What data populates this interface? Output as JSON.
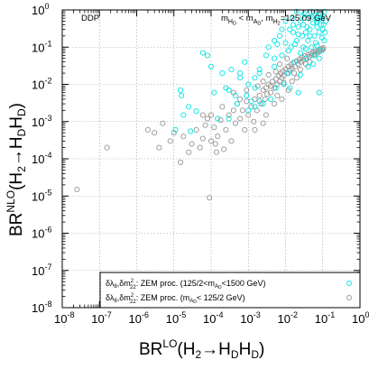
{
  "chart_data": {
    "type": "scatter",
    "scale": {
      "x": "log",
      "y": "log"
    },
    "xlim": [
      1e-08,
      1
    ],
    "ylim": [
      1e-08,
      1
    ],
    "grid": true,
    "legend_position": "bottom-right",
    "corner_left": "DDP",
    "corner_right": {
      "m1": "m",
      "h_d": "H",
      "d1": "D",
      "lt": " < m",
      "a_d": "A",
      "d2": "D",
      "comma": ",  m",
      "h2": "H",
      "two": "2",
      "value": "=125.09 GeV"
    },
    "xlabel": {
      "base": "BR",
      "sup": "LO",
      "open": "(H",
      "s2": "2",
      "arrow": "→H",
      "sd1": "D",
      "h": "H",
      "sd2": "D",
      "close": ")"
    },
    "ylabel": {
      "base": "BR",
      "sup": "NLO",
      "open": "(H",
      "s2": "2",
      "arrow": "→H",
      "sd1": "D",
      "h": "H",
      "sd2": "D",
      "close": ")"
    },
    "x_ticks": [
      {
        "base": "10",
        "exp": "-8",
        "value": 1e-08
      },
      {
        "base": "10",
        "exp": "-7",
        "value": 1e-07
      },
      {
        "base": "10",
        "exp": "-6",
        "value": 1e-06
      },
      {
        "base": "10",
        "exp": "-5",
        "value": 1e-05
      },
      {
        "base": "10",
        "exp": "-4",
        "value": 0.0001
      },
      {
        "base": "10",
        "exp": "-3",
        "value": 0.001
      },
      {
        "base": "10",
        "exp": "-2",
        "value": 0.01
      },
      {
        "base": "10",
        "exp": "-1",
        "value": 0.1
      },
      {
        "base": "10",
        "exp": "0",
        "value": 1
      }
    ],
    "y_ticks": [
      {
        "base": "10",
        "exp": "-8",
        "value": 1e-08
      },
      {
        "base": "10",
        "exp": "-7",
        "value": 1e-07
      },
      {
        "base": "10",
        "exp": "-6",
        "value": 1e-06
      },
      {
        "base": "10",
        "exp": "-5",
        "value": 1e-05
      },
      {
        "base": "10",
        "exp": "-4",
        "value": 0.0001
      },
      {
        "base": "10",
        "exp": "-3",
        "value": 0.001
      },
      {
        "base": "10",
        "exp": "-2",
        "value": 0.01
      },
      {
        "base": "10",
        "exp": "-1",
        "value": 0.1
      },
      {
        "base": "10",
        "exp": "0",
        "value": 1
      }
    ],
    "series": [
      {
        "color": "#00e5e5",
        "marker": "open-circle",
        "legend": {
          "d1": "δλ",
          "s8": "8",
          "sep": ",δm",
          "sup2": "2",
          "sub22": "22",
          "rest": ": ZEM proc. (125/2<m",
          "a_d": "A",
          "d": "D",
          "rest2": "<1500 GeV)"
        },
        "points": [
          [
            1.1e-05,
            0.0006
          ],
          [
            1.5e-05,
            0.007
          ],
          [
            1.6e-05,
            0.005
          ],
          [
            1.8e-05,
            0.0015
          ],
          [
            2.5e-05,
            0.0025
          ],
          [
            2.8e-05,
            0.00055
          ],
          [
            4e-05,
            0.0019
          ],
          [
            6e-05,
            0.07
          ],
          [
            8e-05,
            0.06
          ],
          [
            0.0001,
            0.03
          ],
          [
            0.00015,
            0.0012
          ],
          [
            0.0002,
            0.02
          ],
          [
            0.0003,
            0.0012
          ],
          [
            0.00035,
            0.025
          ],
          [
            0.00045,
            0.005
          ],
          [
            0.0005,
            0.003
          ],
          [
            0.0006,
            0.015
          ],
          [
            0.0008,
            0.04
          ],
          [
            0.0009,
            0.005
          ],
          [
            0.001,
            0.002
          ],
          [
            0.0012,
            0.0035
          ],
          [
            0.0015,
            0.0025
          ],
          [
            0.0015,
            0.008
          ],
          [
            0.002,
            0.025
          ],
          [
            0.002,
            0.02
          ],
          [
            0.0025,
            0.003
          ],
          [
            0.003,
            0.06
          ],
          [
            0.0035,
            0.1
          ],
          [
            0.004,
            0.004
          ],
          [
            0.005,
            0.05
          ],
          [
            0.005,
            0.15
          ],
          [
            0.0055,
            0.008
          ],
          [
            0.006,
            0.12
          ],
          [
            0.007,
            0.2
          ],
          [
            0.008,
            0.06
          ],
          [
            0.008,
            0.3
          ],
          [
            0.009,
            0.01
          ],
          [
            0.01,
            0.13
          ],
          [
            0.01,
            0.5
          ],
          [
            0.012,
            0.02
          ],
          [
            0.012,
            0.08
          ],
          [
            0.013,
            0.3
          ],
          [
            0.014,
            0.1
          ],
          [
            0.015,
            0.6
          ],
          [
            0.016,
            0.25
          ],
          [
            0.018,
            0.04
          ],
          [
            0.02,
            0.15
          ],
          [
            0.02,
            0.9
          ],
          [
            0.022,
            0.35
          ],
          [
            0.025,
            0.07
          ],
          [
            0.025,
            0.5
          ],
          [
            0.028,
            0.2
          ],
          [
            0.03,
            0.1
          ],
          [
            0.03,
            0.4
          ],
          [
            0.032,
            0.8
          ],
          [
            0.035,
            0.25
          ],
          [
            0.04,
            0.15
          ],
          [
            0.04,
            0.6
          ],
          [
            0.045,
            0.3
          ],
          [
            0.05,
            0.1
          ],
          [
            0.05,
            0.9
          ],
          [
            0.055,
            0.45
          ],
          [
            0.06,
            0.2
          ],
          [
            0.06,
            0.7
          ],
          [
            0.065,
            0.13
          ],
          [
            0.07,
            0.35
          ],
          [
            0.07,
            0.9
          ],
          [
            0.075,
            0.55
          ],
          [
            0.08,
            0.25
          ],
          [
            0.08,
            0.006
          ],
          [
            0.085,
            0.8
          ],
          [
            0.09,
            0.4
          ],
          [
            0.095,
            0.18
          ],
          [
            0.1,
            0.7
          ],
          [
            0.1,
            0.3
          ],
          [
            0.11,
            0.9
          ],
          [
            0.12,
            0.5
          ],
          [
            0.022,
            0.006
          ],
          [
            0.013,
            0.008
          ],
          [
            0.035,
            0.05
          ],
          [
            0.04,
            0.03
          ],
          [
            0.06,
            0.06
          ],
          [
            0.016,
            0.4
          ],
          [
            0.028,
            0.7
          ],
          [
            0.045,
            0.2
          ],
          [
            0.07,
            0.11
          ],
          [
            0.09,
            0.08
          ],
          [
            0.11,
            0.15
          ],
          [
            0.0003,
            0.007
          ],
          [
            0.0015,
            0.015
          ],
          [
            0.005,
            0.03
          ],
          [
            0.0006,
            0.02
          ],
          [
            0.002,
            0.0035
          ],
          [
            0.001,
            0.01
          ],
          [
            0.00025,
            0.008
          ],
          [
            0.00012,
            0.006
          ],
          [
            0.025,
            0.018
          ],
          [
            0.035,
            0.09
          ],
          [
            0.055,
            0.035
          ],
          [
            0.08,
            0.05
          ],
          [
            0.018,
            0.12
          ],
          [
            0.022,
            0.22
          ],
          [
            0.038,
            0.35
          ],
          [
            0.052,
            0.65
          ],
          [
            0.068,
            0.48
          ],
          [
            0.09,
            0.6
          ],
          [
            0.105,
            0.4
          ],
          [
            0.115,
            0.25
          ]
        ]
      },
      {
        "color": "#969696",
        "marker": "open-circle",
        "legend": {
          "d1": "δλ",
          "s8": "8",
          "sep": ",δm",
          "sup2": "2",
          "sub22": "22",
          "rest": ": ZEM proc. (m",
          "a_d": "A",
          "d": "D",
          "rest2": "< 125/2 GeV)"
        },
        "points": [
          [
            2.5e-08,
            1.5e-05
          ],
          [
            1.6e-07,
            0.0002
          ],
          [
            9e-05,
            9e-06
          ],
          [
            2e-06,
            0.0006
          ],
          [
            3e-06,
            0.0005
          ],
          [
            5e-06,
            0.0009
          ],
          [
            8e-06,
            0.0003
          ],
          [
            1e-05,
            0.0005
          ],
          [
            1.8e-05,
            0.0004
          ],
          [
            2.5e-05,
            0.00015
          ],
          [
            4e-05,
            0.0006
          ],
          [
            5e-05,
            0.0002
          ],
          [
            6e-05,
            0.0015
          ],
          [
            7e-05,
            0.0008
          ],
          [
            8e-05,
            0.0012
          ],
          [
            0.0001,
            0.0003
          ],
          [
            0.0001,
            0.0015
          ],
          [
            0.00012,
            0.0007
          ],
          [
            0.00014,
            0.00015
          ],
          [
            0.00015,
            0.0004
          ],
          [
            0.00018,
            0.0011
          ],
          [
            0.0002,
            0.0025
          ],
          [
            0.00025,
            0.0006
          ],
          [
            0.0003,
            0.0015
          ],
          [
            0.00035,
            0.0003
          ],
          [
            0.0004,
            0.002
          ],
          [
            0.00045,
            0.0009
          ],
          [
            0.0005,
            0.003
          ],
          [
            0.0006,
            0.0012
          ],
          [
            0.0007,
            0.002
          ],
          [
            0.0008,
            0.0006
          ],
          [
            0.0009,
            0.0035
          ],
          [
            0.001,
            0.0015
          ],
          [
            0.0012,
            0.0025
          ],
          [
            0.0014,
            0.001
          ],
          [
            0.0015,
            0.004
          ],
          [
            0.0017,
            0.002
          ],
          [
            0.002,
            0.005
          ],
          [
            0.0022,
            0.003
          ],
          [
            0.0025,
            0.007
          ],
          [
            0.0028,
            0.004
          ],
          [
            0.003,
            0.008
          ],
          [
            0.0032,
            0.0055
          ],
          [
            0.0035,
            0.01
          ],
          [
            0.004,
            0.006
          ],
          [
            0.0045,
            0.012
          ],
          [
            0.005,
            0.008
          ],
          [
            0.0055,
            0.014
          ],
          [
            0.006,
            0.01
          ],
          [
            0.0065,
            0.017
          ],
          [
            0.007,
            0.012
          ],
          [
            0.0075,
            0.02
          ],
          [
            0.008,
            0.015
          ],
          [
            0.0085,
            0.023
          ],
          [
            0.009,
            0.017
          ],
          [
            0.01,
            0.026
          ],
          [
            0.011,
            0.02
          ],
          [
            0.012,
            0.03
          ],
          [
            0.013,
            0.024
          ],
          [
            0.014,
            0.034
          ],
          [
            0.015,
            0.027
          ],
          [
            0.016,
            0.038
          ],
          [
            0.018,
            0.03
          ],
          [
            0.02,
            0.043
          ],
          [
            0.022,
            0.035
          ],
          [
            0.024,
            0.048
          ],
          [
            0.026,
            0.04
          ],
          [
            0.028,
            0.053
          ],
          [
            0.03,
            0.045
          ],
          [
            0.033,
            0.058
          ],
          [
            0.036,
            0.05
          ],
          [
            0.04,
            0.063
          ],
          [
            0.043,
            0.055
          ],
          [
            0.047,
            0.068
          ],
          [
            0.05,
            0.06
          ],
          [
            0.055,
            0.073
          ],
          [
            0.06,
            0.065
          ],
          [
            0.065,
            0.078
          ],
          [
            0.07,
            0.07
          ],
          [
            0.075,
            0.083
          ],
          [
            0.08,
            0.075
          ],
          [
            0.085,
            0.088
          ],
          [
            0.09,
            0.08
          ],
          [
            0.095,
            0.092
          ],
          [
            0.1,
            0.085
          ],
          [
            0.105,
            0.095
          ],
          [
            0.0004,
            0.006
          ],
          [
            0.0006,
            0.004
          ],
          [
            0.0015,
            0.0006
          ],
          [
            0.003,
            0.0015
          ],
          [
            0.0025,
            0.0009
          ],
          [
            0.005,
            0.003
          ],
          [
            0.006,
            0.005
          ],
          [
            0.008,
            0.004
          ],
          [
            0.012,
            0.007
          ],
          [
            0.015,
            0.012
          ],
          [
            0.02,
            0.015
          ],
          [
            0.0009,
            0.007
          ],
          [
            0.0018,
            0.009
          ],
          [
            0.0035,
            0.018
          ],
          [
            0.007,
            0.035
          ],
          [
            0.011,
            0.05
          ],
          [
            0.00013,
            0.00025
          ],
          [
            0.00022,
            0.00018
          ],
          [
            6e-05,
            0.00035
          ],
          [
            3e-05,
            0.00025
          ],
          [
            1.5e-05,
            8e-05
          ],
          [
            4e-06,
            0.0002
          ],
          [
            0.0025,
            0.012
          ],
          [
            0.004,
            0.009
          ],
          [
            0.0055,
            0.022
          ],
          [
            0.009,
            0.011
          ],
          [
            0.017,
            0.02
          ],
          [
            0.025,
            0.025
          ],
          [
            0.035,
            0.035
          ],
          [
            0.045,
            0.04
          ]
        ]
      }
    ]
  }
}
